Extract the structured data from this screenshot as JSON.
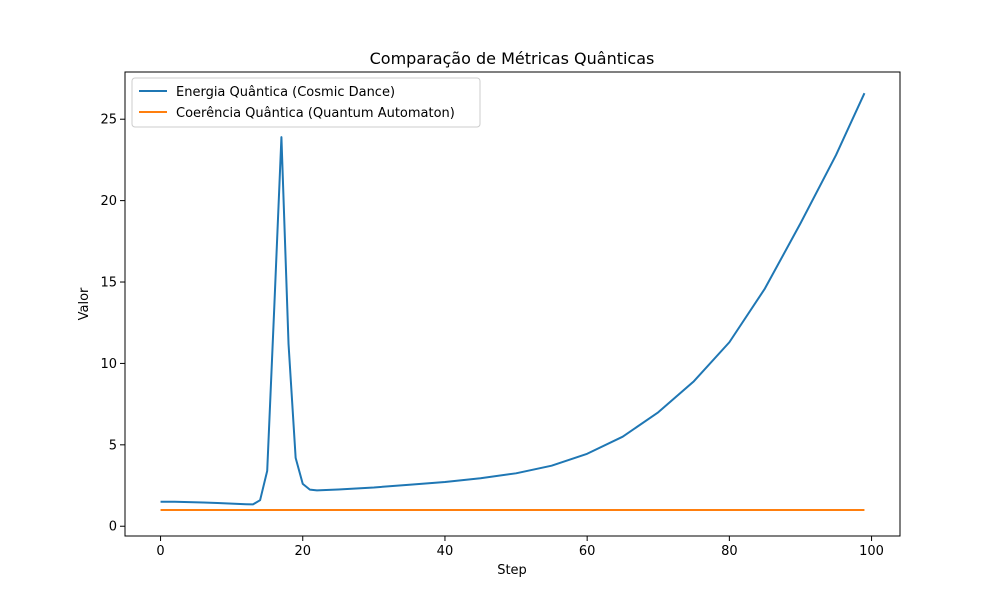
{
  "chart_data": {
    "type": "line",
    "title": "Comparação de Métricas Quânticas",
    "xlabel": "Step",
    "ylabel": "Valor",
    "xlim": [
      -5,
      104
    ],
    "ylim": [
      -0.6,
      27.9
    ],
    "xticks": [
      0,
      20,
      40,
      60,
      80,
      100
    ],
    "yticks": [
      0,
      5,
      10,
      15,
      20,
      25
    ],
    "grid": false,
    "legend_position": "top-left",
    "series": [
      {
        "name": "Energia Quântica (Cosmic Dance)",
        "color": "#1f77b4",
        "points": [
          [
            0,
            1.5
          ],
          [
            2,
            1.5
          ],
          [
            4,
            1.48
          ],
          [
            6,
            1.46
          ],
          [
            8,
            1.43
          ],
          [
            10,
            1.39
          ],
          [
            12,
            1.35
          ],
          [
            13,
            1.34
          ],
          [
            14,
            1.6
          ],
          [
            15,
            3.4
          ],
          [
            16,
            13.5
          ],
          [
            17,
            23.9
          ],
          [
            18,
            11.2
          ],
          [
            19,
            4.2
          ],
          [
            20,
            2.6
          ],
          [
            21,
            2.25
          ],
          [
            22,
            2.2
          ],
          [
            25,
            2.26
          ],
          [
            30,
            2.38
          ],
          [
            35,
            2.55
          ],
          [
            40,
            2.72
          ],
          [
            45,
            2.95
          ],
          [
            50,
            3.25
          ],
          [
            55,
            3.72
          ],
          [
            60,
            4.45
          ],
          [
            65,
            5.5
          ],
          [
            70,
            7.0
          ],
          [
            75,
            8.9
          ],
          [
            80,
            11.3
          ],
          [
            85,
            14.6
          ],
          [
            90,
            18.6
          ],
          [
            95,
            22.8
          ],
          [
            99,
            26.6
          ]
        ]
      },
      {
        "name": "Coerência Quântica (Quantum Automaton)",
        "color": "#ff7f0e",
        "points": [
          [
            0,
            1.0
          ],
          [
            99,
            1.0
          ]
        ]
      }
    ]
  }
}
